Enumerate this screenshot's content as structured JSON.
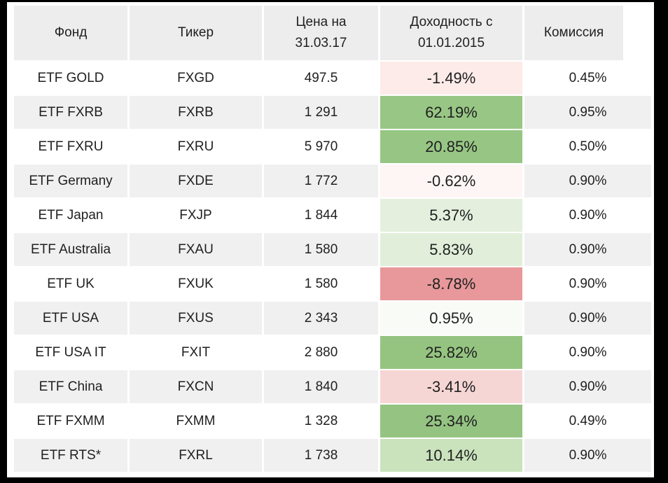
{
  "frame": {
    "border_color": "#000000",
    "page_background": "#ffffff",
    "header_background": "#ededed",
    "stripe_background": "#f0f0f0",
    "text_color": "#1f1f1f"
  },
  "table": {
    "headers": [
      {
        "line1": "Фонд",
        "line2": ""
      },
      {
        "line1": "Тикер",
        "line2": ""
      },
      {
        "line1": "Цена на",
        "line2": "31.03.17"
      },
      {
        "line1": "Доходность с",
        "line2": "01.01.2015"
      },
      {
        "line1": "Комиссия",
        "line2": ""
      }
    ],
    "rows": [
      {
        "fund": "ETF GOLD",
        "ticker": "FXGD",
        "price": "497.5",
        "ret": "-1.49%",
        "ret_bg": "#fcebe9",
        "fee": "0.45%"
      },
      {
        "fund": "ETF FXRB",
        "ticker": "FXRB",
        "price": "1 291",
        "ret": "62.19%",
        "ret_bg": "#98c785",
        "fee": "0.95%"
      },
      {
        "fund": "ETF FXRU",
        "ticker": "FXRU",
        "price": "5 970",
        "ret": "20.85%",
        "ret_bg": "#97c684",
        "fee": "0.50%"
      },
      {
        "fund": "ETF Germany",
        "ticker": "FXDE",
        "price": "1 772",
        "ret": "-0.62%",
        "ret_bg": "#fdf6f5",
        "fee": "0.90%"
      },
      {
        "fund": "ETF Japan",
        "ticker": "FXJP",
        "price": "1 844",
        "ret": "5.37%",
        "ret_bg": "#e4f0dd",
        "fee": "0.90%"
      },
      {
        "fund": "ETF Australia",
        "ticker": "FXAU",
        "price": "1 580",
        "ret": "5.83%",
        "ret_bg": "#e1efda",
        "fee": "0.90%"
      },
      {
        "fund": "ETF UK",
        "ticker": "FXUK",
        "price": "1 580",
        "ret": "-8.78%",
        "ret_bg": "#e8989a",
        "fee": "0.90%"
      },
      {
        "fund": "ETF USA",
        "ticker": "FXUS",
        "price": "2 343",
        "ret": "0.95%",
        "ret_bg": "#f8fbf6",
        "fee": "0.90%"
      },
      {
        "fund": "ETF USA IT",
        "ticker": "FXIT",
        "price": "2 880",
        "ret": "25.82%",
        "ret_bg": "#95c481",
        "fee": "0.90%"
      },
      {
        "fund": "ETF China",
        "ticker": "FXCN",
        "price": "1 840",
        "ret": "-3.41%",
        "ret_bg": "#f6d6d4",
        "fee": "0.90%"
      },
      {
        "fund": "ETF FXMM",
        "ticker": "FXMM",
        "price": "1 328",
        "ret": "25.34%",
        "ret_bg": "#95c482",
        "fee": "0.49%"
      },
      {
        "fund": "ETF RTS*",
        "ticker": "FXRL",
        "price": "1 738",
        "ret": "10.14%",
        "ret_bg": "#cae3bd",
        "fee": "0.90%"
      }
    ]
  },
  "chart_data": {
    "type": "table",
    "columns": [
      "Фонд",
      "Тикер",
      "Цена на 31.03.17",
      "Доходность с 01.01.2015",
      "Комиссия"
    ],
    "rows": [
      [
        "ETF GOLD",
        "FXGD",
        "497.5",
        "-1.49%",
        "0.45%"
      ],
      [
        "ETF FXRB",
        "FXRB",
        "1 291",
        "62.19%",
        "0.95%"
      ],
      [
        "ETF FXRU",
        "FXRU",
        "5 970",
        "20.85%",
        "0.50%"
      ],
      [
        "ETF Germany",
        "FXDE",
        "1 772",
        "-0.62%",
        "0.90%"
      ],
      [
        "ETF Japan",
        "FXJP",
        "1 844",
        "5.37%",
        "0.90%"
      ],
      [
        "ETF Australia",
        "FXAU",
        "1 580",
        "5.83%",
        "0.90%"
      ],
      [
        "ETF UK",
        "FXUK",
        "1 580",
        "-8.78%",
        "0.90%"
      ],
      [
        "ETF USA",
        "FXUS",
        "2 343",
        "0.95%",
        "0.90%"
      ],
      [
        "ETF USA IT",
        "FXIT",
        "2 880",
        "25.82%",
        "0.90%"
      ],
      [
        "ETF China",
        "FXCN",
        "1 840",
        "-3.41%",
        "0.90%"
      ],
      [
        "ETF FXMM",
        "FXMM",
        "1 328",
        "25.34%",
        "0.49%"
      ],
      [
        "ETF RTS*",
        "FXRL",
        "1 738",
        "10.14%",
        "0.90%"
      ]
    ],
    "heatmap_column": "Доходность с 01.01.2015",
    "heatmap_scale": {
      "negative": "#e8989a",
      "neutral": "#ffffff",
      "positive": "#97c684"
    },
    "returns_numeric": [
      -1.49,
      62.19,
      20.85,
      -0.62,
      5.37,
      5.83,
      -8.78,
      0.95,
      25.82,
      -3.41,
      25.34,
      10.14
    ]
  }
}
